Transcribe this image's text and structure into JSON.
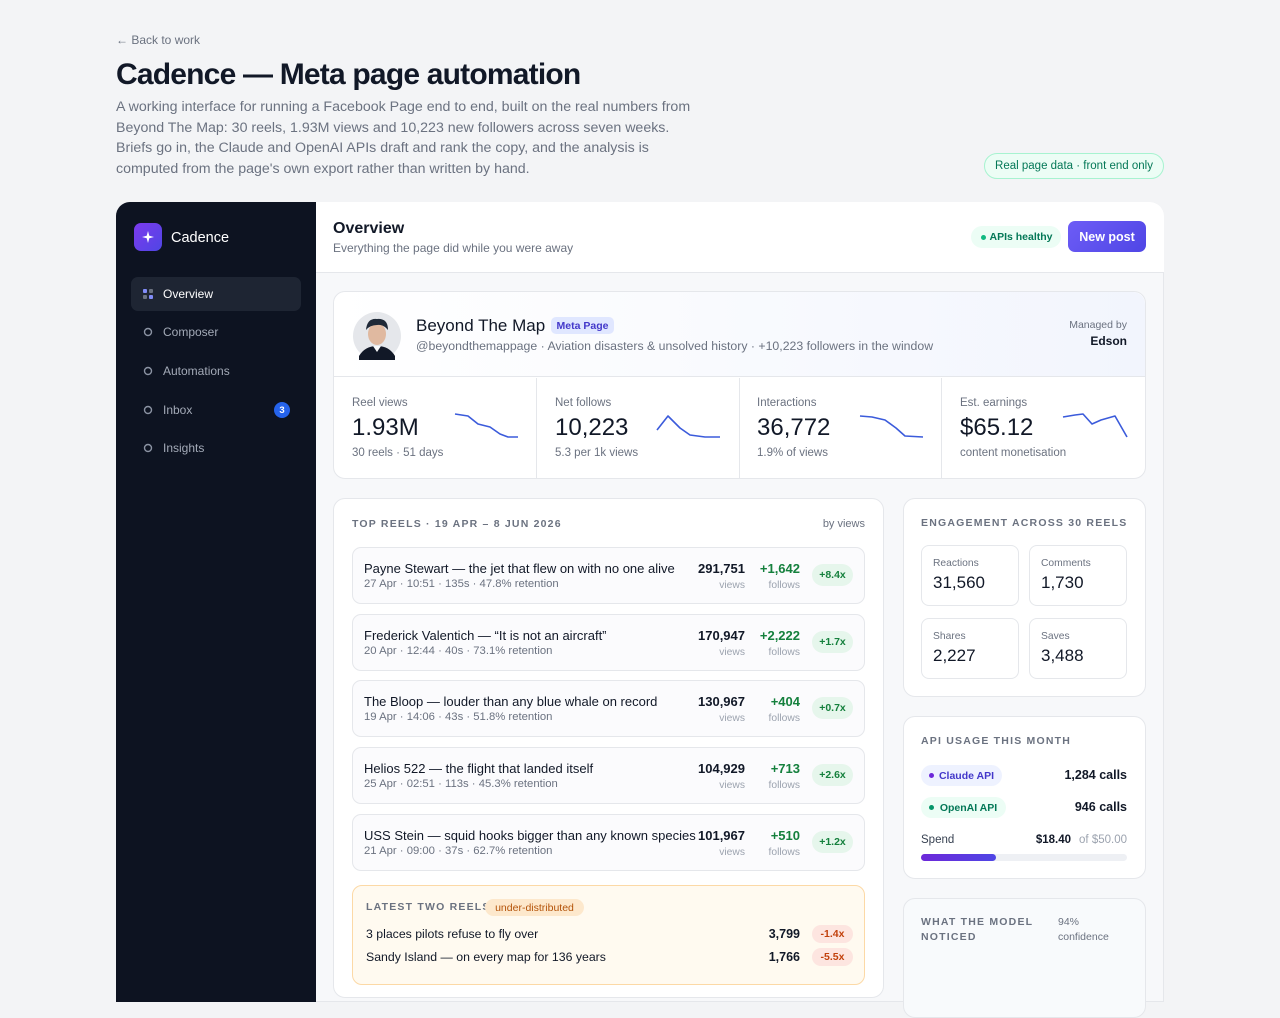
{
  "header": {
    "back": "← Back to work",
    "title": "Cadence — Meta page automation",
    "description": "A working interface for running a Facebook Page end to end, built on the real numbers from Beyond The Map: 30 reels, 1.93M views and 10,223 new followers across seven weeks. Briefs go in, the Claude and OpenAI APIs draft and rank the copy, and the analysis is computed from the page's own export rather than written by hand.",
    "badge": "Real page data · front end only"
  },
  "sidebar": {
    "brand": "Cadence",
    "nav": [
      {
        "label": "Overview"
      },
      {
        "label": "Composer"
      },
      {
        "label": "Automations"
      },
      {
        "label": "Inbox",
        "badge": "3"
      },
      {
        "label": "Insights"
      }
    ]
  },
  "topbar": {
    "title": "Overview",
    "subtitle": "Everything the page did while you were away",
    "status": "APIs healthy",
    "button": "New post"
  },
  "profile": {
    "name": "Beyond The Map",
    "tag": "Meta Page",
    "meta": "@beyondthemappage · Aviation disasters & unsolved history · +10,223 followers in the window",
    "managed_label": "Managed by",
    "manager": "Edson"
  },
  "stats": [
    {
      "label": "Reel views",
      "value": "1.93M",
      "sub": "30 reels · 51 days"
    },
    {
      "label": "Net follows",
      "value": "10,223",
      "sub": "5.3 per 1k views"
    },
    {
      "label": "Interactions",
      "value": "36,772",
      "sub": "1.9% of views"
    },
    {
      "label": "Est. earnings",
      "value": "$65.12",
      "sub": "content monetisation"
    }
  ],
  "top_reels": {
    "title": "TOP REELS · 19 APR – 8 JUN 2026",
    "sort": "by views",
    "views_label": "views",
    "follows_label": "follows",
    "rows": [
      {
        "title": "Payne Stewart — the jet that flew on with no one alive",
        "meta": "27 Apr · 10:51 · 135s · 47.8% retention",
        "views": "291,751",
        "follows": "+1,642",
        "ratio": "+8.4x"
      },
      {
        "title": "Frederick Valentich — “It is not an aircraft”",
        "meta": "20 Apr · 12:44 · 40s · 73.1% retention",
        "views": "170,947",
        "follows": "+2,222",
        "ratio": "+1.7x"
      },
      {
        "title": "The Bloop — louder than any blue whale on record",
        "meta": "19 Apr · 14:06 · 43s · 51.8% retention",
        "views": "130,967",
        "follows": "+404",
        "ratio": "+0.7x"
      },
      {
        "title": "Helios 522 — the flight that landed itself",
        "meta": "25 Apr · 02:51 · 113s · 45.3% retention",
        "views": "104,929",
        "follows": "+713",
        "ratio": "+2.6x"
      },
      {
        "title": "USS Stein — squid hooks bigger than any known species",
        "meta": "21 Apr · 09:00 · 37s · 62.7% retention",
        "views": "101,967",
        "follows": "+510",
        "ratio": "+1.2x"
      }
    ]
  },
  "latest": {
    "title": "LATEST TWO REELS",
    "tag": "under-distributed",
    "rows": [
      {
        "title": "3 places pilots refuse to fly over",
        "views": "3,799",
        "ratio": "-1.4x"
      },
      {
        "title": "Sandy Island — on every map for 136 years",
        "views": "1,766",
        "ratio": "-5.5x"
      }
    ]
  },
  "engagement": {
    "title": "ENGAGEMENT ACROSS 30 REELS",
    "tiles": [
      {
        "label": "Reactions",
        "value": "31,560"
      },
      {
        "label": "Comments",
        "value": "1,730"
      },
      {
        "label": "Shares",
        "value": "2,227"
      },
      {
        "label": "Saves",
        "value": "3,488"
      }
    ]
  },
  "api_usage": {
    "title": "API USAGE THIS MONTH",
    "rows": [
      {
        "name": "Claude API",
        "calls": "1,284 calls"
      },
      {
        "name": "OpenAI API",
        "calls": "946 calls"
      }
    ],
    "spend_label": "Spend",
    "spend": "$18.40",
    "limit": "of $50.00"
  },
  "model": {
    "title": "WHAT THE MODEL NOTICED",
    "confidence": "94% confidence"
  }
}
